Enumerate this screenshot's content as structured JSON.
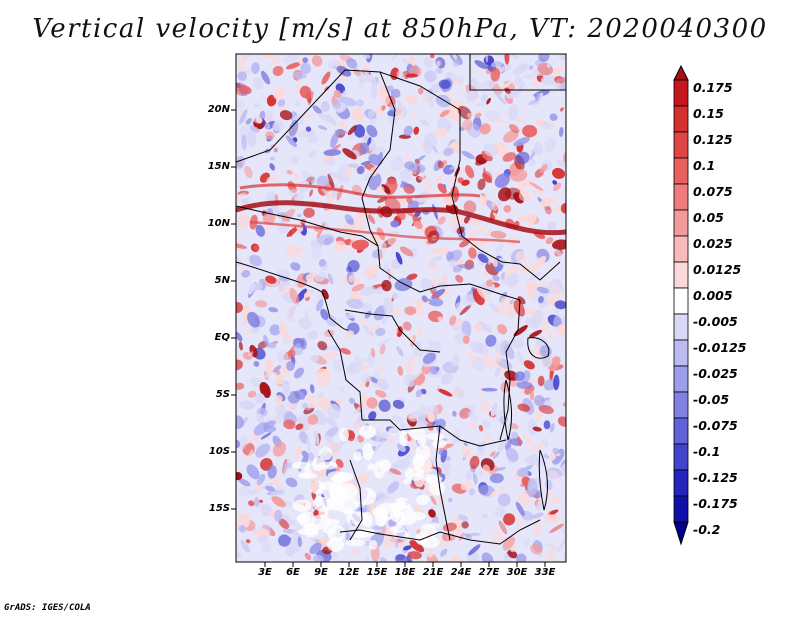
{
  "title": "Vertical velocity [m/s] at 850hPa, VT: 2020040300",
  "credit": "GrADS: IGES/COLA",
  "map": {
    "lat_labels": [
      "20N",
      "15N",
      "10N",
      "5N",
      "EQ",
      "5S",
      "10S",
      "15S"
    ],
    "lon_labels": [
      "3E",
      "6E",
      "9E",
      "12E",
      "15E",
      "18E",
      "21E",
      "24E",
      "27E",
      "30E",
      "33E"
    ]
  },
  "colorbar": {
    "labels": [
      "0.175",
      "0.15",
      "0.125",
      "0.1",
      "0.075",
      "0.05",
      "0.025",
      "0.0125",
      "0.005",
      "-0.005",
      "-0.0125",
      "-0.025",
      "-0.05",
      "-0.075",
      "-0.1",
      "-0.125",
      "-0.175",
      "-0.2"
    ],
    "colors": [
      "#a50f15",
      "#c4161c",
      "#d62f2f",
      "#e04545",
      "#e86060",
      "#ef7b7b",
      "#f49a9a",
      "#f8baba",
      "#fbd9d9",
      "#ffffff",
      "#d9d9f7",
      "#bcbcf2",
      "#9e9eeb",
      "#8181e2",
      "#6262d8",
      "#4343cc",
      "#2525bd",
      "#1010a8",
      "#000090"
    ]
  },
  "field_colors": {
    "positive": [
      "#fbd9d9",
      "#f49a9a",
      "#e86060",
      "#d62f2f",
      "#a50f15"
    ],
    "negative": [
      "#d9d9f7",
      "#bcbcf2",
      "#9e9eeb",
      "#8181e2",
      "#4343cc"
    ]
  }
}
